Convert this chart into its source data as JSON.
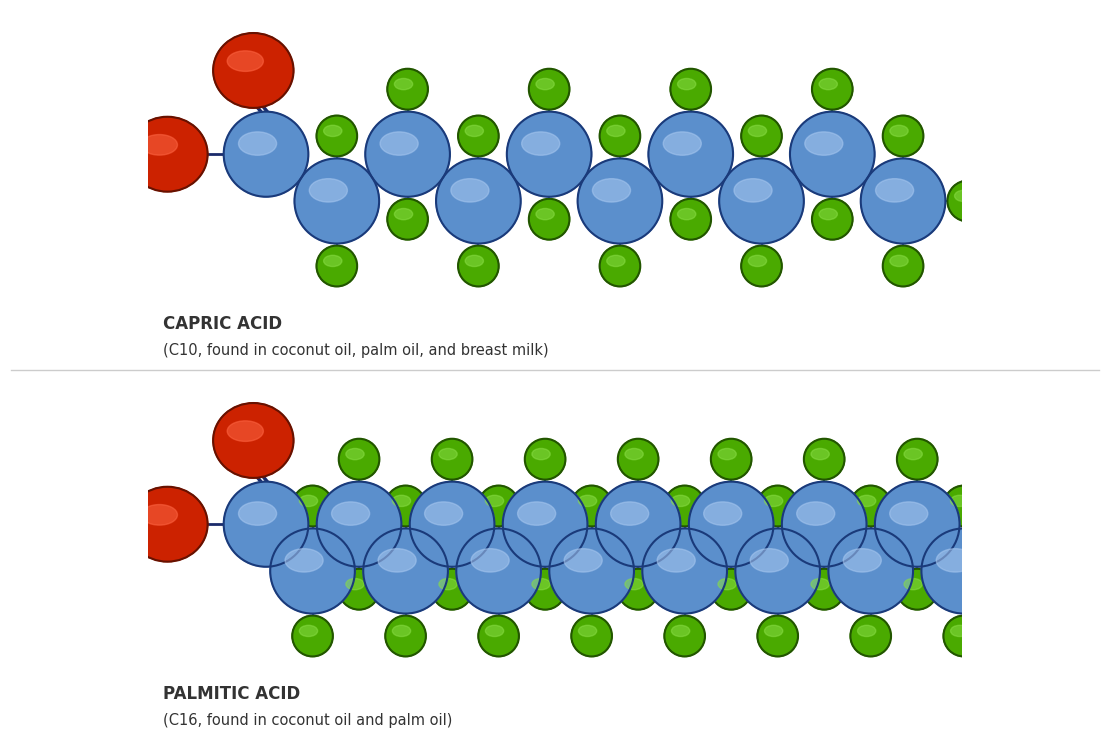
{
  "background_color": "#ffffff",
  "molecules": [
    {
      "name": "CAPRIC ACID",
      "subtitle": "(C10, found in coconut oil, palm oil, and breast milk)",
      "n_carbons": 10,
      "panel": "top"
    },
    {
      "name": "PALMITIC ACID",
      "subtitle": "(C16, found in coconut oil and palm oil)",
      "n_carbons": 16,
      "panel": "bottom"
    }
  ],
  "carbon_color": "#5b8fcc",
  "carbon_highlight": "#a8c8f0",
  "carbon_shadow": "#1a3a7a",
  "hydrogen_color": "#4aaa00",
  "hydrogen_highlight": "#88dd44",
  "hydrogen_shadow": "#225500",
  "oxygen_color": "#cc2200",
  "oxygen_highlight": "#ff6644",
  "oxygen_shadow": "#661100",
  "bond_color": "#1a2a6a",
  "divider_color": "#cccccc",
  "label_color": "#333333",
  "title_fontsize": 12,
  "subtitle_fontsize": 10.5
}
